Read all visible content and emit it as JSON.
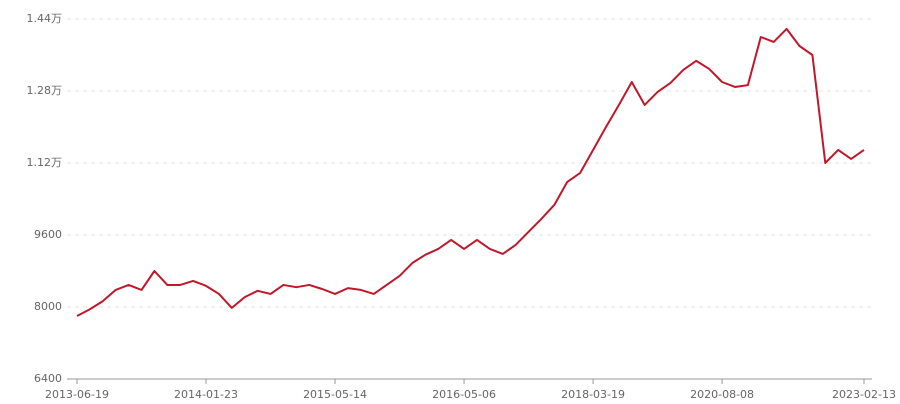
{
  "chart_data": {
    "type": "line",
    "categories": [
      "2013-06-19",
      null,
      null,
      null,
      null,
      null,
      null,
      null,
      null,
      null,
      "2014-01-23",
      null,
      null,
      null,
      null,
      null,
      null,
      null,
      null,
      null,
      "2015-05-14",
      null,
      null,
      null,
      null,
      null,
      null,
      null,
      null,
      null,
      "2016-05-06",
      null,
      null,
      null,
      null,
      null,
      null,
      null,
      null,
      null,
      "2018-03-19",
      null,
      null,
      null,
      null,
      null,
      null,
      null,
      null,
      null,
      "2020-08-08",
      null,
      null,
      null,
      null,
      null,
      null,
      null,
      null,
      null,
      null,
      "2023-02-13"
    ],
    "values": [
      7800,
      7950,
      8130,
      8380,
      8490,
      8380,
      8800,
      8490,
      8490,
      8580,
      8470,
      8290,
      7980,
      8220,
      8360,
      8290,
      8490,
      8440,
      8490,
      8400,
      8290,
      8420,
      8380,
      8290,
      8490,
      8690,
      8980,
      9160,
      9290,
      9490,
      9290,
      9490,
      9290,
      9180,
      9380,
      9670,
      9960,
      10270,
      10780,
      10980,
      11490,
      12000,
      12490,
      13000,
      12490,
      12780,
      12980,
      13270,
      13470,
      13290,
      13000,
      12890,
      12930,
      14000,
      13890,
      14180,
      13800,
      13600,
      11200,
      11490,
      11290,
      11490
    ],
    "color": "#c0182a",
    "ylim": [
      6400,
      14400
    ],
    "yticks": [
      6400,
      8000,
      9600,
      {
        "value": 11200,
        "label": "1.12万"
      },
      {
        "value": 12800,
        "label": "1.28万"
      },
      {
        "value": 14400,
        "label": "1.44万"
      }
    ],
    "grid": true
  }
}
